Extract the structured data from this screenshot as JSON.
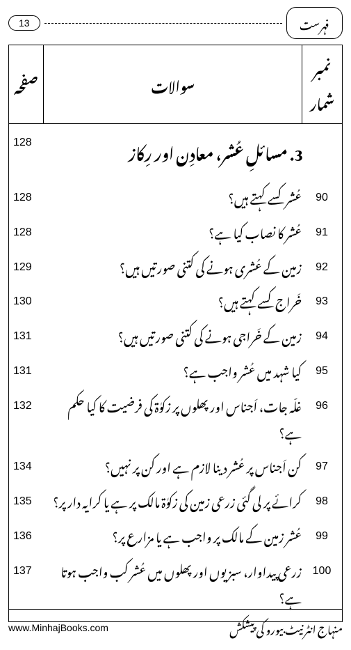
{
  "page_number": "13",
  "header_label": "فہرست",
  "table": {
    "headers": {
      "number": "نمبر شمار",
      "question": "سوالات",
      "page": "صفحہ"
    },
    "section": {
      "title": "3. مسائلِ عُشر، معادِن اور رِکاز",
      "page": "128"
    },
    "rows": [
      {
        "num": "90",
        "q": "عُشر کسے کہتے ہیں؟",
        "page": "128"
      },
      {
        "num": "91",
        "q": "عُشر کا نصاب کیا ہے؟",
        "page": "128"
      },
      {
        "num": "92",
        "q": "زمین کے عُشری ہونے کی کتنی صورتیں ہیں؟",
        "page": "129"
      },
      {
        "num": "93",
        "q": "خَراج کسے کہتے ہیں؟",
        "page": "130"
      },
      {
        "num": "94",
        "q": "زمین کے خَراجی ہونے کی کتنی صورتیں ہیں؟",
        "page": "131"
      },
      {
        "num": "95",
        "q": "کیا شہد میں عُشر واجب ہے؟",
        "page": "131"
      },
      {
        "num": "96",
        "q": "غلّہ جات، اَجناس اور پھلوں پر زکوٰۃ کی فرضیت کا کیا حکم ہے؟",
        "page": "132"
      },
      {
        "num": "97",
        "q": "کن اَجناس پر عُشر دینا لازم ہے اور کن پر نہیں؟",
        "page": "134"
      },
      {
        "num": "98",
        "q": "کرائے پر لی گئی زرعی زمین کی زکوٰۃ مالک پر ہے یا کرایہ دار پر؟",
        "page": "135"
      },
      {
        "num": "99",
        "q": "عُشر زمین کے مالک پر واجب ہے یا مزارع پر؟",
        "page": "136"
      },
      {
        "num": "100",
        "q": "زرعی پیداوار، سبزیوں اور پھلوں میں عُشر کب واجب ہوتا ہے؟",
        "page": "137"
      }
    ]
  },
  "footer": {
    "url": "www.MinhajBooks.com",
    "credit": "منہاج انٹرنیٹ بیورو کی پیشکش"
  }
}
